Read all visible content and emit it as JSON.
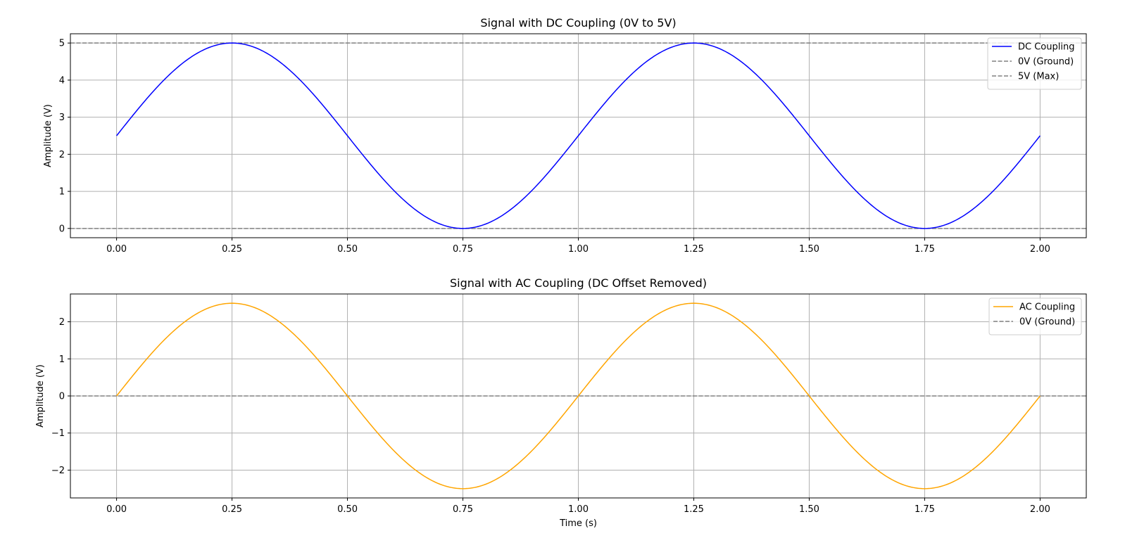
{
  "colors": {
    "dc_signal": "#0000ff",
    "ac_signal": "#ffa500",
    "reference": "#808080",
    "grid": "#b0b0b0",
    "axes": "#000000"
  },
  "chart_data": [
    {
      "type": "line",
      "title": "Signal with DC Coupling (0V to 5V)",
      "xlabel": "",
      "ylabel": "Amplitude (V)",
      "xlim": [
        -0.1,
        2.1
      ],
      "ylim": [
        -0.25,
        5.25
      ],
      "xticks": [
        0.0,
        0.25,
        0.5,
        0.75,
        1.0,
        1.25,
        1.5,
        1.75,
        2.0
      ],
      "xtick_labels": [
        "0.00",
        "0.25",
        "0.50",
        "0.75",
        "1.00",
        "1.25",
        "1.50",
        "1.75",
        "2.00"
      ],
      "yticks": [
        0,
        1,
        2,
        3,
        4,
        5
      ],
      "ytick_labels": [
        "0",
        "1",
        "2",
        "3",
        "4",
        "5"
      ],
      "grid": true,
      "legend_position": "top-right",
      "series": [
        {
          "name": "DC Coupling",
          "color": "#0000ff",
          "style": "solid",
          "function": "2.5 + 2.5*sin(2*pi*t)",
          "x": [
            0.0,
            0.125,
            0.25,
            0.375,
            0.5,
            0.625,
            0.75,
            0.875,
            1.0,
            1.125,
            1.25,
            1.375,
            1.5,
            1.625,
            1.75,
            1.875,
            2.0
          ],
          "y": [
            2.5,
            4.27,
            5.0,
            4.27,
            2.5,
            0.73,
            0.0,
            0.73,
            2.5,
            4.27,
            5.0,
            4.27,
            2.5,
            0.73,
            0.0,
            0.73,
            2.5
          ]
        }
      ],
      "reference_lines": [
        {
          "name": "0V (Ground)",
          "y": 0,
          "color": "#808080",
          "style": "dashed"
        },
        {
          "name": "5V (Max)",
          "y": 5,
          "color": "#808080",
          "style": "dashed"
        }
      ]
    },
    {
      "type": "line",
      "title": "Signal with AC Coupling (DC Offset Removed)",
      "xlabel": "Time (s)",
      "ylabel": "Amplitude (V)",
      "xlim": [
        -0.1,
        2.1
      ],
      "ylim": [
        -2.75,
        2.75
      ],
      "xticks": [
        0.0,
        0.25,
        0.5,
        0.75,
        1.0,
        1.25,
        1.5,
        1.75,
        2.0
      ],
      "xtick_labels": [
        "0.00",
        "0.25",
        "0.50",
        "0.75",
        "1.00",
        "1.25",
        "1.50",
        "1.75",
        "2.00"
      ],
      "yticks": [
        -2,
        -1,
        0,
        1,
        2
      ],
      "ytick_labels": [
        "−2",
        "−1",
        "0",
        "1",
        "2"
      ],
      "grid": true,
      "legend_position": "top-right",
      "series": [
        {
          "name": "AC Coupling",
          "color": "#ffa500",
          "style": "solid",
          "function": "2.5*sin(2*pi*t)",
          "x": [
            0.0,
            0.125,
            0.25,
            0.375,
            0.5,
            0.625,
            0.75,
            0.875,
            1.0,
            1.125,
            1.25,
            1.375,
            1.5,
            1.625,
            1.75,
            1.875,
            2.0
          ],
          "y": [
            0.0,
            1.77,
            2.5,
            1.77,
            0.0,
            -1.77,
            -2.5,
            -1.77,
            0.0,
            1.77,
            2.5,
            1.77,
            0.0,
            -1.77,
            -2.5,
            -1.77,
            0.0
          ]
        }
      ],
      "reference_lines": [
        {
          "name": "0V (Ground)",
          "y": 0,
          "color": "#808080",
          "style": "dashed"
        }
      ]
    }
  ]
}
